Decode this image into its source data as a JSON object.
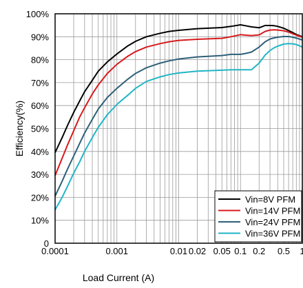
{
  "chart_data": {
    "type": "line",
    "title": "",
    "xlabel": "Load Current (A)",
    "ylabel": "Efficiency(%)",
    "x_scale": "log",
    "xlim": [
      0.0001,
      1
    ],
    "ylim": [
      0,
      100
    ],
    "grid": true,
    "legend_position": "bottom-right",
    "x_ticks": [
      {
        "value": 0.0001,
        "label": "0.0001"
      },
      {
        "value": 0.001,
        "label": "0.001"
      },
      {
        "value": 0.01,
        "label": "0.01"
      },
      {
        "value": 0.02,
        "label": "0.02"
      },
      {
        "value": 0.05,
        "label": "0.05"
      },
      {
        "value": 0.1,
        "label": "0.1"
      },
      {
        "value": 0.2,
        "label": "0.2"
      },
      {
        "value": 0.5,
        "label": "0.5"
      },
      {
        "value": 1,
        "label": "1"
      }
    ],
    "y_ticks": [
      {
        "value": 0,
        "label": "0"
      },
      {
        "value": 10,
        "label": "10%"
      },
      {
        "value": 20,
        "label": "20%"
      },
      {
        "value": 30,
        "label": "30%"
      },
      {
        "value": 40,
        "label": "40%"
      },
      {
        "value": 50,
        "label": "50%"
      },
      {
        "value": 60,
        "label": "60%"
      },
      {
        "value": 70,
        "label": "70%"
      },
      {
        "value": 80,
        "label": "80%"
      },
      {
        "value": 90,
        "label": "90%"
      },
      {
        "value": 100,
        "label": "100%"
      }
    ],
    "series": [
      {
        "name": "Vin=8V PFM",
        "color": "#000000",
        "x": [
          0.0001,
          0.00013,
          0.00016,
          0.0002,
          0.00025,
          0.0003,
          0.0004,
          0.0005,
          0.0007,
          0.001,
          0.0015,
          0.002,
          0.003,
          0.005,
          0.007,
          0.01,
          0.02,
          0.05,
          0.07,
          0.1,
          0.12,
          0.15,
          0.2,
          0.25,
          0.3,
          0.35,
          0.4,
          0.5,
          0.6,
          0.7,
          0.8,
          1
        ],
        "y": [
          39.5,
          46,
          51.5,
          57,
          62,
          66,
          71,
          75,
          79,
          82.5,
          86,
          88,
          90,
          91.5,
          92.3,
          92.8,
          93.5,
          94,
          94.5,
          95.2,
          94.8,
          94.3,
          93.9,
          94.9,
          94.9,
          94.8,
          94.5,
          93.7,
          92.7,
          91.8,
          91,
          90
        ]
      },
      {
        "name": "Vin=14V PFM",
        "color": "#d7191c",
        "x": [
          0.0001,
          0.00013,
          0.00016,
          0.0002,
          0.00025,
          0.0003,
          0.0004,
          0.0005,
          0.0007,
          0.001,
          0.0015,
          0.002,
          0.003,
          0.005,
          0.007,
          0.01,
          0.02,
          0.05,
          0.07,
          0.1,
          0.12,
          0.15,
          0.2,
          0.25,
          0.3,
          0.35,
          0.4,
          0.5,
          0.6,
          0.7,
          0.8,
          1
        ],
        "y": [
          29.5,
          37,
          43,
          49,
          55,
          59,
          65,
          69,
          74,
          78,
          81.5,
          83.5,
          85.5,
          87,
          87.8,
          88.4,
          88.9,
          89.3,
          90,
          90.9,
          90.7,
          90.5,
          90.8,
          92.3,
          92.9,
          93,
          92.9,
          92.6,
          92,
          91.3,
          90.7,
          89.8
        ]
      },
      {
        "name": "Vin=24V PFM",
        "color": "#2d5f78",
        "x": [
          0.0001,
          0.00013,
          0.00016,
          0.0002,
          0.00025,
          0.0003,
          0.0004,
          0.0005,
          0.0007,
          0.001,
          0.0015,
          0.002,
          0.003,
          0.005,
          0.007,
          0.01,
          0.02,
          0.05,
          0.07,
          0.1,
          0.12,
          0.15,
          0.2,
          0.25,
          0.3,
          0.35,
          0.4,
          0.5,
          0.6,
          0.7,
          0.8,
          1
        ],
        "y": [
          20.5,
          27,
          32.5,
          38,
          43.5,
          48,
          54,
          58.5,
          63.5,
          67.5,
          71.5,
          74,
          76.5,
          78.5,
          79.5,
          80.3,
          81.2,
          81.8,
          82.3,
          82.3,
          82.7,
          83.3,
          85.5,
          87.8,
          89,
          89.5,
          89.8,
          90.1,
          90.1,
          89.8,
          89.4,
          88.6
        ]
      },
      {
        "name": "Vin=36V PFM",
        "color": "#1fb5c6",
        "x": [
          0.0001,
          0.00013,
          0.00016,
          0.0002,
          0.00025,
          0.0003,
          0.0004,
          0.0005,
          0.0007,
          0.001,
          0.0015,
          0.002,
          0.003,
          0.005,
          0.007,
          0.01,
          0.02,
          0.05,
          0.07,
          0.1,
          0.12,
          0.15,
          0.2,
          0.25,
          0.3,
          0.35,
          0.4,
          0.5,
          0.6,
          0.7,
          0.8,
          1
        ],
        "y": [
          14.5,
          20,
          25,
          30.5,
          35.5,
          40,
          46,
          50.5,
          56,
          60.5,
          64.5,
          67.5,
          70.5,
          72.5,
          73.5,
          74.2,
          75,
          75.4,
          75.6,
          75.6,
          75.6,
          75.6,
          78.5,
          82,
          84,
          85.2,
          85.9,
          86.8,
          87,
          86.9,
          86.6,
          85.5
        ]
      }
    ]
  }
}
